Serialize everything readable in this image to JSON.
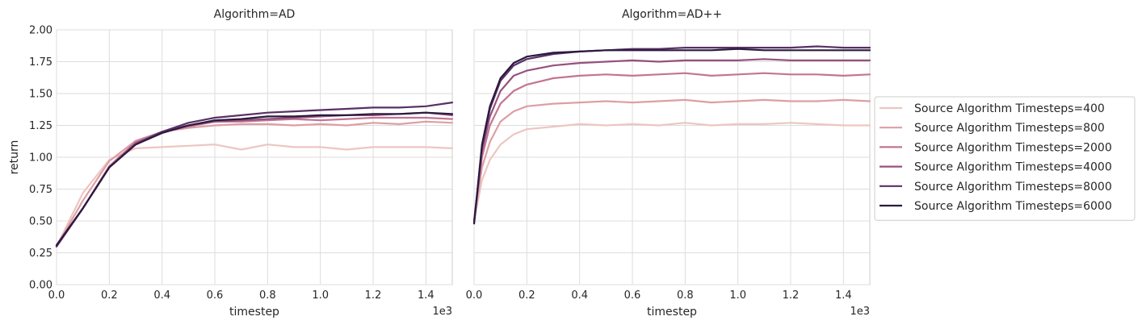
{
  "chart_data": {
    "type": "line",
    "ylabel": "return",
    "xlabel": "timestep",
    "x_offset_text": "1e3",
    "xlim": [
      0,
      1.5
    ],
    "ylim": [
      0,
      2.0
    ],
    "x_ticks": [
      "0.0",
      "0.2",
      "0.4",
      "0.6",
      "0.8",
      "1.0",
      "1.2",
      "1.4"
    ],
    "y_ticks": [
      "0.00",
      "0.25",
      "0.50",
      "0.75",
      "1.00",
      "1.25",
      "1.50",
      "1.75",
      "2.00"
    ],
    "grid": true,
    "legend_placement": "outside-right",
    "legend": [
      {
        "label": "Source Algorithm Timesteps=400",
        "color": "#ecc6c2"
      },
      {
        "label": "Source Algorithm Timesteps=800",
        "color": "#dd9ea3"
      },
      {
        "label": "Source Algorithm Timesteps=2000",
        "color": "#c27593"
      },
      {
        "label": "Source Algorithm Timesteps=4000",
        "color": "#96517e"
      },
      {
        "label": "Source Algorithm Timesteps=8000",
        "color": "#5a3065"
      },
      {
        "label": "Source Algorithm Timesteps=6000",
        "color": "#2a1a3e"
      }
    ],
    "panels": [
      {
        "title": "Algorithm=AD",
        "series": [
          {
            "name": "Source Algorithm Timesteps=400",
            "x": [
              0.0,
              0.1,
              0.2,
              0.3,
              0.4,
              0.5,
              0.6,
              0.7,
              0.8,
              0.9,
              1.0,
              1.1,
              1.2,
              1.3,
              1.4,
              1.5
            ],
            "y": [
              0.3,
              0.72,
              0.98,
              1.07,
              1.08,
              1.09,
              1.1,
              1.06,
              1.1,
              1.08,
              1.08,
              1.06,
              1.08,
              1.08,
              1.08,
              1.07
            ]
          },
          {
            "name": "Source Algorithm Timesteps=800",
            "x": [
              0.0,
              0.1,
              0.2,
              0.3,
              0.4,
              0.5,
              0.6,
              0.7,
              0.8,
              0.9,
              1.0,
              1.1,
              1.2,
              1.3,
              1.4,
              1.5
            ],
            "y": [
              0.3,
              0.66,
              0.97,
              1.13,
              1.2,
              1.23,
              1.25,
              1.26,
              1.26,
              1.25,
              1.26,
              1.25,
              1.27,
              1.26,
              1.28,
              1.27
            ]
          },
          {
            "name": "Source Algorithm Timesteps=2000",
            "x": [
              0.0,
              0.1,
              0.2,
              0.3,
              0.4,
              0.5,
              0.6,
              0.7,
              0.8,
              0.9,
              1.0,
              1.1,
              1.2,
              1.3,
              1.4,
              1.5
            ],
            "y": [
              0.3,
              0.6,
              0.93,
              1.12,
              1.2,
              1.24,
              1.28,
              1.28,
              1.29,
              1.3,
              1.29,
              1.3,
              1.31,
              1.31,
              1.31,
              1.3
            ]
          },
          {
            "name": "Source Algorithm Timesteps=4000",
            "x": [
              0.0,
              0.1,
              0.2,
              0.3,
              0.4,
              0.5,
              0.6,
              0.7,
              0.8,
              0.9,
              1.0,
              1.1,
              1.2,
              1.3,
              1.4,
              1.5
            ],
            "y": [
              0.3,
              0.6,
              0.92,
              1.11,
              1.2,
              1.25,
              1.28,
              1.29,
              1.3,
              1.31,
              1.32,
              1.33,
              1.33,
              1.34,
              1.35,
              1.33
            ]
          },
          {
            "name": "Source Algorithm Timesteps=8000",
            "x": [
              0.0,
              0.1,
              0.2,
              0.3,
              0.4,
              0.5,
              0.6,
              0.7,
              0.8,
              0.9,
              1.0,
              1.1,
              1.2,
              1.3,
              1.4,
              1.5
            ],
            "y": [
              0.3,
              0.6,
              0.92,
              1.1,
              1.2,
              1.27,
              1.31,
              1.33,
              1.35,
              1.36,
              1.37,
              1.38,
              1.39,
              1.39,
              1.4,
              1.43
            ]
          },
          {
            "name": "Source Algorithm Timesteps=6000",
            "x": [
              0.0,
              0.1,
              0.2,
              0.3,
              0.4,
              0.5,
              0.6,
              0.7,
              0.8,
              0.9,
              1.0,
              1.1,
              1.2,
              1.3,
              1.4,
              1.5
            ],
            "y": [
              0.31,
              0.6,
              0.92,
              1.1,
              1.19,
              1.25,
              1.29,
              1.3,
              1.32,
              1.32,
              1.33,
              1.33,
              1.34,
              1.34,
              1.35,
              1.34
            ]
          }
        ]
      },
      {
        "title": "Algorithm=AD++",
        "series": [
          {
            "name": "Source Algorithm Timesteps=400",
            "x": [
              0.0,
              0.03,
              0.06,
              0.1,
              0.15,
              0.2,
              0.3,
              0.4,
              0.5,
              0.6,
              0.7,
              0.8,
              0.9,
              1.0,
              1.1,
              1.2,
              1.3,
              1.4,
              1.5
            ],
            "y": [
              0.5,
              0.82,
              0.98,
              1.1,
              1.18,
              1.22,
              1.24,
              1.26,
              1.25,
              1.26,
              1.25,
              1.27,
              1.25,
              1.26,
              1.26,
              1.27,
              1.26,
              1.25,
              1.25
            ]
          },
          {
            "name": "Source Algorithm Timesteps=800",
            "x": [
              0.0,
              0.03,
              0.06,
              0.1,
              0.15,
              0.2,
              0.3,
              0.4,
              0.5,
              0.6,
              0.7,
              0.8,
              0.9,
              1.0,
              1.1,
              1.2,
              1.3,
              1.4,
              1.5
            ],
            "y": [
              0.5,
              0.92,
              1.12,
              1.28,
              1.36,
              1.4,
              1.42,
              1.43,
              1.44,
              1.43,
              1.44,
              1.45,
              1.43,
              1.44,
              1.45,
              1.44,
              1.44,
              1.45,
              1.44
            ]
          },
          {
            "name": "Source Algorithm Timesteps=2000",
            "x": [
              0.0,
              0.03,
              0.06,
              0.1,
              0.15,
              0.2,
              0.3,
              0.4,
              0.5,
              0.6,
              0.7,
              0.8,
              0.9,
              1.0,
              1.1,
              1.2,
              1.3,
              1.4,
              1.5
            ],
            "y": [
              0.5,
              1.0,
              1.25,
              1.42,
              1.52,
              1.57,
              1.62,
              1.64,
              1.65,
              1.64,
              1.65,
              1.66,
              1.64,
              1.65,
              1.66,
              1.65,
              1.65,
              1.64,
              1.65
            ]
          },
          {
            "name": "Source Algorithm Timesteps=4000",
            "x": [
              0.0,
              0.03,
              0.06,
              0.1,
              0.15,
              0.2,
              0.3,
              0.4,
              0.5,
              0.6,
              0.7,
              0.8,
              0.9,
              1.0,
              1.1,
              1.2,
              1.3,
              1.4,
              1.5
            ],
            "y": [
              0.5,
              1.05,
              1.32,
              1.52,
              1.64,
              1.68,
              1.72,
              1.74,
              1.75,
              1.76,
              1.75,
              1.76,
              1.76,
              1.76,
              1.77,
              1.76,
              1.76,
              1.76,
              1.76
            ]
          },
          {
            "name": "Source Algorithm Timesteps=8000",
            "x": [
              0.0,
              0.03,
              0.06,
              0.1,
              0.15,
              0.2,
              0.3,
              0.4,
              0.5,
              0.6,
              0.7,
              0.8,
              0.9,
              1.0,
              1.1,
              1.2,
              1.3,
              1.4,
              1.5
            ],
            "y": [
              0.48,
              1.08,
              1.38,
              1.6,
              1.72,
              1.77,
              1.81,
              1.83,
              1.84,
              1.85,
              1.85,
              1.86,
              1.86,
              1.86,
              1.86,
              1.86,
              1.87,
              1.86,
              1.86
            ]
          },
          {
            "name": "Source Algorithm Timesteps=6000",
            "x": [
              0.0,
              0.03,
              0.06,
              0.1,
              0.15,
              0.2,
              0.3,
              0.4,
              0.5,
              0.6,
              0.7,
              0.8,
              0.9,
              1.0,
              1.1,
              1.2,
              1.3,
              1.4,
              1.5
            ],
            "y": [
              0.48,
              1.1,
              1.4,
              1.62,
              1.74,
              1.79,
              1.82,
              1.83,
              1.84,
              1.84,
              1.84,
              1.84,
              1.84,
              1.85,
              1.84,
              1.84,
              1.84,
              1.84,
              1.84
            ]
          }
        ]
      }
    ]
  }
}
